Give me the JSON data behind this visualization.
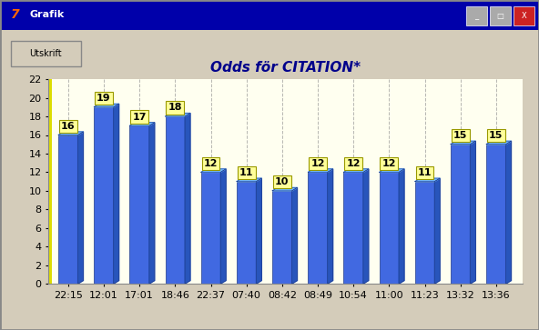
{
  "title": "Odds för CITATION*",
  "categories": [
    "22:15",
    "12:01",
    "17:01",
    "18:46",
    "22:37",
    "07:40",
    "08:42",
    "08:49",
    "10:54",
    "11:00",
    "11:23",
    "13:32",
    "13:36"
  ],
  "values": [
    16,
    19,
    17,
    18,
    12,
    11,
    10,
    12,
    12,
    12,
    11,
    15,
    15
  ],
  "ylim": [
    0,
    22
  ],
  "yticks": [
    0,
    2,
    4,
    6,
    8,
    10,
    12,
    14,
    16,
    18,
    20,
    22
  ],
  "bar_color_face": "#4169E1",
  "bar_color_dark": "#1E3A8A",
  "bar_color_top": "#6EB5FF",
  "bar_color_right": "#2855BB",
  "label_bg": "#FFFF99",
  "label_border": "#999900",
  "title_color": "#00008B",
  "background_color": "#D4CCBA",
  "plot_bg": "#FFFFF0",
  "grid_color": "#888888",
  "titlebar_color": "#0000AA",
  "title_fontsize": 11,
  "label_fontsize": 8,
  "tick_fontsize": 8
}
